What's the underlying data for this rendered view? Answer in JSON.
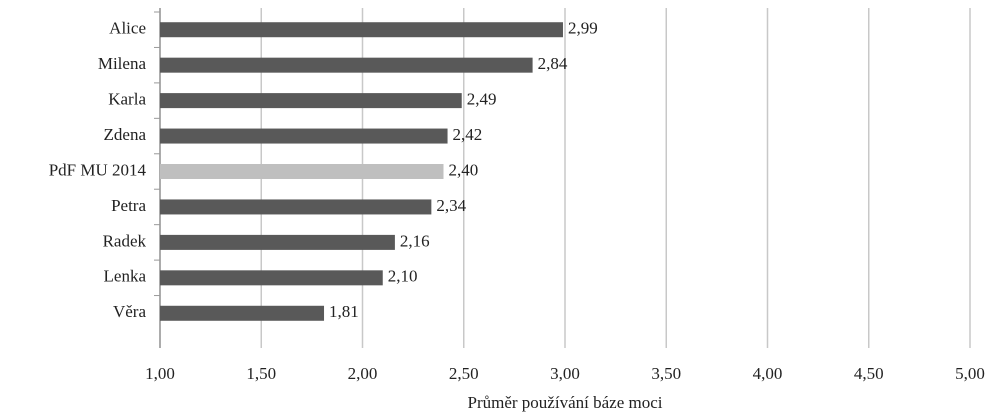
{
  "chart_data": {
    "type": "bar",
    "orientation": "horizontal",
    "x_label": "Průměr používání báze moci",
    "categories": [
      "Alice",
      "Milena",
      "Karla",
      "Zdena",
      "PdF MU 2014",
      "Petra",
      "Radek",
      "Lenka",
      "Věra"
    ],
    "values": [
      2.99,
      2.84,
      2.49,
      2.42,
      2.4,
      2.34,
      2.16,
      2.1,
      1.81
    ],
    "value_labels": [
      "2,99",
      "2,84",
      "2,49",
      "2,42",
      "2,40",
      "2,34",
      "2,16",
      "2,10",
      "1,81"
    ],
    "colors": [
      "#595959",
      "#595959",
      "#595959",
      "#595959",
      "#bfbfbf",
      "#595959",
      "#595959",
      "#595959",
      "#595959"
    ],
    "xlim": [
      1,
      5
    ],
    "xticks": [
      {
        "value": 1,
        "label": "1,00"
      },
      {
        "value": 1.5,
        "label": "1,50"
      },
      {
        "value": 2,
        "label": "2,00"
      },
      {
        "value": 2.5,
        "label": "2,50"
      },
      {
        "value": 3,
        "label": "3,00"
      },
      {
        "value": 3.5,
        "label": "3,50"
      },
      {
        "value": 4,
        "label": "4,00"
      },
      {
        "value": 4.5,
        "label": "4,50"
      },
      {
        "value": 5,
        "label": "5,00"
      }
    ],
    "grid": true
  }
}
